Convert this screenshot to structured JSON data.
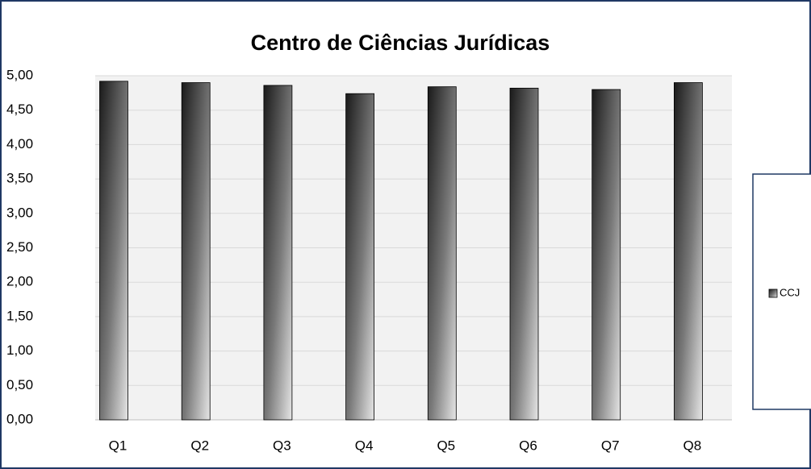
{
  "chart_data": {
    "type": "bar",
    "title": "Centro de Ciências Jurídicas",
    "categories": [
      "Q1",
      "Q2",
      "Q3",
      "Q4",
      "Q5",
      "Q6",
      "Q7",
      "Q8"
    ],
    "series": [
      {
        "name": "CCJ",
        "color": "#1a1a1a",
        "values": [
          4.92,
          4.9,
          4.86,
          4.74,
          4.84,
          4.82,
          4.8,
          4.9
        ]
      }
    ],
    "ylim": [
      0,
      5
    ],
    "yticks": [
      {
        "value": 0,
        "label": "0,00"
      },
      {
        "value": 0.5,
        "label": "0,50"
      },
      {
        "value": 1,
        "label": "1,00"
      },
      {
        "value": 1.5,
        "label": "1,50"
      },
      {
        "value": 2,
        "label": "2,00"
      },
      {
        "value": 2.5,
        "label": "2,50"
      },
      {
        "value": 3,
        "label": "3,00"
      },
      {
        "value": 3.5,
        "label": "3,50"
      },
      {
        "value": 4,
        "label": "4,00"
      },
      {
        "value": 4.5,
        "label": "4,50"
      },
      {
        "value": 5,
        "label": "5,00"
      }
    ],
    "grid": true,
    "legend": "right"
  }
}
